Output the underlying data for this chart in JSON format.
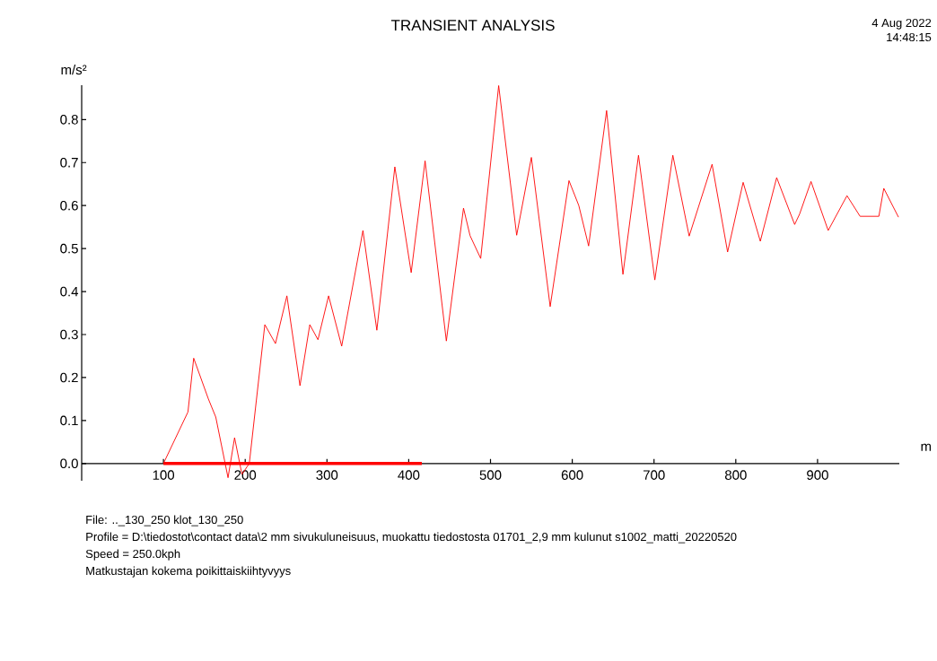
{
  "chart_data": {
    "type": "line",
    "title": "TRANSIENT ANALYSIS",
    "xlabel": "m",
    "ylabel": "m/s²",
    "x": [
      100,
      130,
      137,
      155,
      164,
      179,
      187,
      196,
      205,
      224,
      237,
      251,
      267,
      279,
      289,
      302,
      318,
      344,
      361,
      383,
      403,
      420,
      446,
      467,
      475,
      488,
      510,
      532,
      550,
      573,
      596,
      608,
      620,
      642,
      662,
      681,
      701,
      723,
      743,
      771,
      790,
      809,
      830,
      850,
      872,
      878,
      892,
      913,
      936,
      952,
      975,
      981,
      999
    ],
    "series": [
      {
        "type": "line",
        "color": "#ff0000",
        "x": [
          100,
          416
        ],
        "values": [
          0,
          0
        ]
      },
      {
        "color": "#ff0000",
        "values": [
          0,
          0.12,
          0.245,
          0.15,
          0.108,
          -0.033,
          0.06,
          -0.025,
          0,
          0.323,
          0.279,
          0.39,
          0.181,
          0.323,
          0.288,
          0.39,
          0.273,
          0.542,
          0.31,
          0.69,
          0.444,
          0.704,
          0.285,
          0.594,
          0.53,
          0.477,
          0.879,
          0.531,
          0.712,
          0.365,
          0.658,
          0.6,
          0.506,
          0.821,
          0.44,
          0.717,
          0.427,
          0.717,
          0.529,
          0.696,
          0.492,
          0.654,
          0.517,
          0.665,
          0.556,
          0.58,
          0.656,
          0.542,
          0.623,
          0.575,
          0.575,
          0.64,
          0.573
        ]
      }
    ],
    "xlim": [
      0,
      1000
    ],
    "ylim": [
      -0.04,
      0.88
    ],
    "xticks": [
      100,
      200,
      300,
      400,
      500,
      600,
      700,
      800,
      900
    ],
    "yticks": [
      {
        "value": 0,
        "label": "0.0"
      },
      0.1,
      0.2,
      0.3,
      0.4,
      0.5,
      0.6,
      0.7,
      0.8
    ],
    "annotations": [
      "4 Aug 2022",
      "14:48:15",
      "File: .._130_250    klot_130_250",
      "Profile = D:\\tiedostot\\contact data\\2 mm sivukuluneisuus, muokattu tiedostosta 01701_2,9 mm kulunut s1002_matti_20220520",
      "Speed = 250.0kph",
      "Matkustajan kokema poikittaiskiihtyvyys"
    ]
  }
}
